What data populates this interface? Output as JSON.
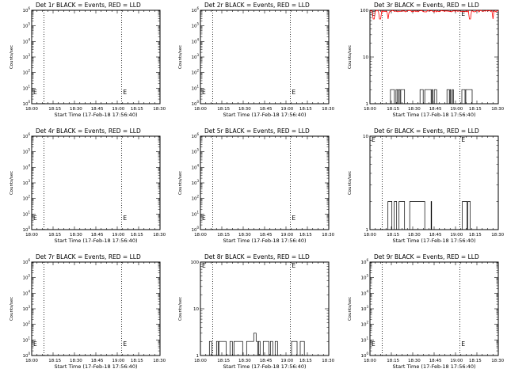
{
  "chart_data": [
    {
      "id": "1r",
      "type": "line",
      "title": "Det 1r BLACK = Events, RED = LLD",
      "xlabel": "Start Time (17-Feb-18 17:56:40)",
      "ylabel": "Counts/sec",
      "xticks": [
        "18:00",
        "18:15",
        "18:30",
        "18:45",
        "19:00",
        "18:15",
        "18:30"
      ],
      "yscale": "log",
      "ylim": [
        1,
        1000000
      ],
      "empty": true,
      "yticks": [
        {
          "b": "10",
          "e": "0"
        },
        {
          "b": "10",
          "e": "1"
        },
        {
          "b": "10",
          "e": "2"
        },
        {
          "b": "10",
          "e": "3"
        },
        {
          "b": "10",
          "e": "4"
        },
        {
          "b": "10",
          "e": "5"
        },
        {
          "b": "10",
          "e": "6"
        }
      ],
      "markers": [
        "E",
        "E"
      ],
      "vlines": [
        0.095,
        0.7
      ],
      "series": []
    },
    {
      "id": "2r",
      "type": "line",
      "title": "Det 2r BLACK = Events, RED = LLD",
      "xlabel": "Start Time (17-Feb-18 17:56:40)",
      "ylabel": "Counts/sec",
      "xticks": [
        "18:00",
        "18:15",
        "18:30",
        "18:45",
        "19:00",
        "18:15",
        "18:30"
      ],
      "yscale": "log",
      "ylim": [
        1,
        1000000
      ],
      "empty": true,
      "yticks": [
        {
          "b": "10",
          "e": "0"
        },
        {
          "b": "10",
          "e": "1"
        },
        {
          "b": "10",
          "e": "2"
        },
        {
          "b": "10",
          "e": "3"
        },
        {
          "b": "10",
          "e": "4"
        },
        {
          "b": "10",
          "e": "5"
        },
        {
          "b": "10",
          "e": "6"
        }
      ],
      "markers": [
        "E",
        "E"
      ],
      "vlines": [
        0.095,
        0.7
      ],
      "series": []
    },
    {
      "id": "3r",
      "type": "line",
      "title": "Det 3r BLACK = Events, RED = LLD",
      "xlabel": "Start Time (17-Feb-18 17:56:40)",
      "ylabel": "Counts/sec",
      "xticks": [
        "18:00",
        "18:15",
        "18:30",
        "18:45",
        "19:00",
        "18:15",
        "18:30"
      ],
      "yscale": "log",
      "ylim": [
        1,
        100
      ],
      "empty": false,
      "yticks": [
        {
          "b": "1",
          "e": ""
        },
        {
          "b": "10",
          "e": ""
        },
        {
          "b": "100",
          "e": ""
        }
      ],
      "markers": [
        "E",
        "E"
      ],
      "vlines": [
        0.095,
        0.7
      ],
      "series": [
        {
          "color": "#000000",
          "kind": "bars",
          "low": 1,
          "high": 2,
          "segments": [
            [
              0.16,
              0.27
            ],
            [
              0.39,
              0.52
            ],
            [
              0.6,
              0.65
            ],
            [
              0.71,
              0.83
            ]
          ]
        },
        {
          "color": "#ff0000",
          "kind": "noisy",
          "level": 100,
          "spread": 0.08,
          "spikes": [
            0.03,
            0.08,
            0.14,
            0.78,
            0.96
          ]
        }
      ]
    },
    {
      "id": "4r",
      "type": "line",
      "title": "Det 4r BLACK = Events, RED = LLD",
      "xlabel": "Start Time (17-Feb-18 17:56:40)",
      "ylabel": "Counts/sec",
      "xticks": [
        "18:00",
        "18:15",
        "18:30",
        "18:45",
        "19:00",
        "18:15",
        "18:30"
      ],
      "yscale": "log",
      "ylim": [
        1,
        1000000
      ],
      "empty": true,
      "yticks": [
        {
          "b": "10",
          "e": "0"
        },
        {
          "b": "10",
          "e": "1"
        },
        {
          "b": "10",
          "e": "2"
        },
        {
          "b": "10",
          "e": "3"
        },
        {
          "b": "10",
          "e": "4"
        },
        {
          "b": "10",
          "e": "5"
        },
        {
          "b": "10",
          "e": "6"
        }
      ],
      "markers": [
        "E",
        "E"
      ],
      "vlines": [
        0.095,
        0.7
      ],
      "series": []
    },
    {
      "id": "5r",
      "type": "line",
      "title": "Det 5r BLACK = Events, RED = LLD",
      "xlabel": "Start Time (17-Feb-18 17:56:40)",
      "ylabel": "Counts/sec",
      "xticks": [
        "18:00",
        "18:15",
        "18:30",
        "18:45",
        "19:00",
        "18:15",
        "18:30"
      ],
      "yscale": "log",
      "ylim": [
        1,
        1000000
      ],
      "empty": true,
      "yticks": [
        {
          "b": "10",
          "e": "0"
        },
        {
          "b": "10",
          "e": "1"
        },
        {
          "b": "10",
          "e": "2"
        },
        {
          "b": "10",
          "e": "3"
        },
        {
          "b": "10",
          "e": "4"
        },
        {
          "b": "10",
          "e": "5"
        },
        {
          "b": "10",
          "e": "6"
        }
      ],
      "markers": [
        "E",
        "E"
      ],
      "vlines": [
        0.095,
        0.7
      ],
      "series": []
    },
    {
      "id": "6r",
      "type": "line",
      "title": "Det 6r BLACK = Events, RED = LLD",
      "xlabel": "Start Time (17-Feb-18 17:56:40)",
      "ylabel": "Counts/sec",
      "xticks": [
        "18:00",
        "18:15",
        "18:30",
        "18:45",
        "19:00",
        "18:15",
        "18:30"
      ],
      "yscale": "log",
      "ylim": [
        1,
        10
      ],
      "empty": false,
      "yticks": [
        {
          "b": "1",
          "e": ""
        },
        {
          "b": "10",
          "e": ""
        }
      ],
      "markers": [
        "E",
        "E"
      ],
      "vlines": [
        0.095,
        0.7
      ],
      "series": [
        {
          "color": "#000000",
          "kind": "bars",
          "low": 1,
          "high": 2,
          "segments": [
            [
              0.14,
              0.28
            ],
            [
              0.31,
              0.48
            ],
            [
              0.72,
              0.8
            ]
          ]
        }
      ]
    },
    {
      "id": "7r",
      "type": "line",
      "title": "Det 7r BLACK = Events, RED = LLD",
      "xlabel": "Start Time (17-Feb-18 17:56:40)",
      "ylabel": "Counts/sec",
      "xticks": [
        "18:00",
        "18:15",
        "18:30",
        "18:45",
        "19:00",
        "18:15",
        "18:30"
      ],
      "yscale": "log",
      "ylim": [
        1,
        1000000
      ],
      "empty": true,
      "yticks": [
        {
          "b": "10",
          "e": "0"
        },
        {
          "b": "10",
          "e": "1"
        },
        {
          "b": "10",
          "e": "2"
        },
        {
          "b": "10",
          "e": "3"
        },
        {
          "b": "10",
          "e": "4"
        },
        {
          "b": "10",
          "e": "5"
        },
        {
          "b": "10",
          "e": "6"
        }
      ],
      "markers": [
        "E",
        "E"
      ],
      "vlines": [
        0.095,
        0.7
      ],
      "series": []
    },
    {
      "id": "8r",
      "type": "line",
      "title": "Det 8r BLACK = Events, RED = LLD",
      "xlabel": "Start Time (17-Feb-18 17:56:40)",
      "ylabel": "Counts/sec",
      "xticks": [
        "18:00",
        "18:15",
        "18:30",
        "18:45",
        "19:00",
        "18:15",
        "18:30"
      ],
      "yscale": "log",
      "ylim": [
        1,
        100
      ],
      "empty": false,
      "yticks": [
        {
          "b": "1",
          "e": ""
        },
        {
          "b": "10",
          "e": ""
        },
        {
          "b": "100",
          "e": ""
        }
      ],
      "markers": [
        "E",
        "E"
      ],
      "vlines": [
        0.095,
        0.7
      ],
      "series": [
        {
          "color": "#000000",
          "kind": "bars",
          "low": 1,
          "high": 2,
          "peaks": 3,
          "segments": [
            [
              0.07,
              0.2
            ],
            [
              0.23,
              0.62
            ],
            [
              0.71,
              0.81
            ]
          ]
        }
      ]
    },
    {
      "id": "9r",
      "type": "line",
      "title": "Det 9r BLACK = Events, RED = LLD",
      "xlabel": "Start Time (17-Feb-18 17:56:40)",
      "ylabel": "Counts/sec",
      "xticks": [
        "18:00",
        "18:15",
        "18:30",
        "18:45",
        "19:00",
        "18:15",
        "18:30"
      ],
      "yscale": "log",
      "ylim": [
        1,
        1000000
      ],
      "empty": true,
      "yticks": [
        {
          "b": "10",
          "e": "0"
        },
        {
          "b": "10",
          "e": "1"
        },
        {
          "b": "10",
          "e": "2"
        },
        {
          "b": "10",
          "e": "3"
        },
        {
          "b": "10",
          "e": "4"
        },
        {
          "b": "10",
          "e": "5"
        },
        {
          "b": "10",
          "e": "6"
        }
      ],
      "markers": [
        "E",
        "E"
      ],
      "vlines": [
        0.095,
        0.7
      ],
      "series": []
    }
  ]
}
